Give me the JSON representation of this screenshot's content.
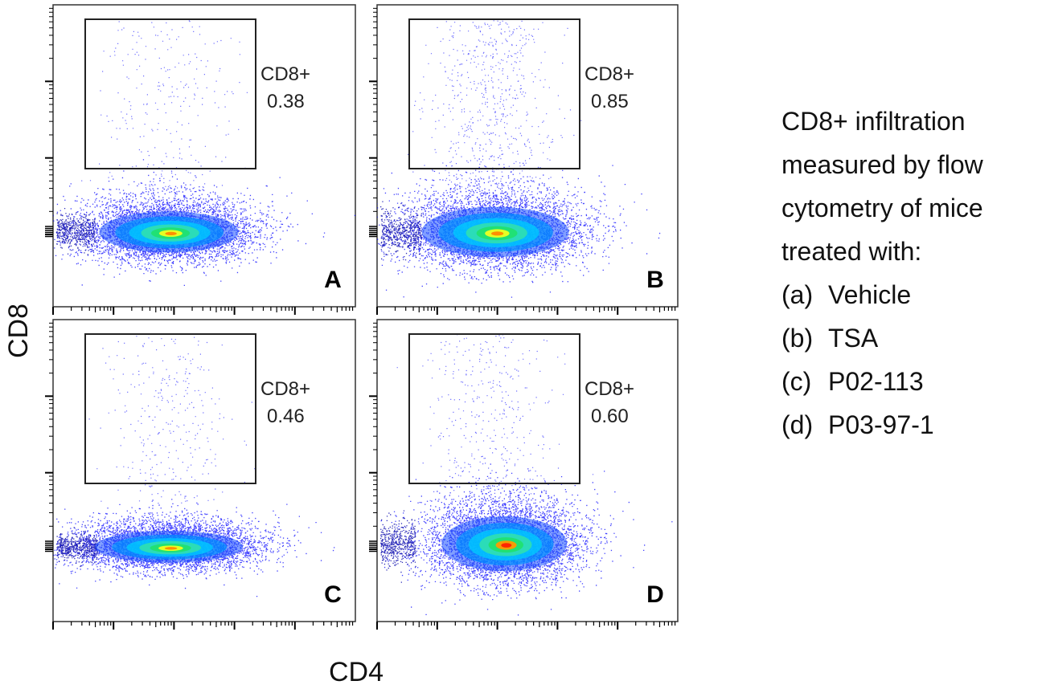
{
  "chart_data": {
    "type": "scatter",
    "subtype": "flow-cytometry-density-plot",
    "xlabel": "CD4",
    "ylabel": "CD8",
    "gate_name": "CD8+",
    "panels": [
      {
        "id": "A",
        "label": "A",
        "gate_label": "CD8+",
        "gate_value": "0.38",
        "treatment": "Vehicle"
      },
      {
        "id": "B",
        "label": "B",
        "gate_label": "CD8+",
        "gate_value": "0.85",
        "treatment": "TSA"
      },
      {
        "id": "C",
        "label": "C",
        "gate_label": "CD8+",
        "gate_value": "0.46",
        "treatment": "P02-113"
      },
      {
        "id": "D",
        "label": "D",
        "gate_label": "CD8+",
        "gate_value": "0.60",
        "treatment": "P03-97-1"
      }
    ]
  },
  "description": {
    "lines": [
      "CD8+ infiltration",
      "measured by flow",
      "cytometry of mice",
      "treated with:"
    ],
    "items": [
      {
        "key": "(a)",
        "text": "Vehicle"
      },
      {
        "key": "(b)",
        "text": "TSA"
      },
      {
        "key": "(c)",
        "text": "P02-113"
      },
      {
        "key": "(d)",
        "text": "P03-97-1"
      }
    ]
  },
  "colors": {
    "density_low": "#0000ff",
    "density_mid": "#00c8ff",
    "density_green": "#20e070",
    "density_yellow": "#f0ff20",
    "density_high": "#ff2000",
    "axis": "#000000"
  }
}
